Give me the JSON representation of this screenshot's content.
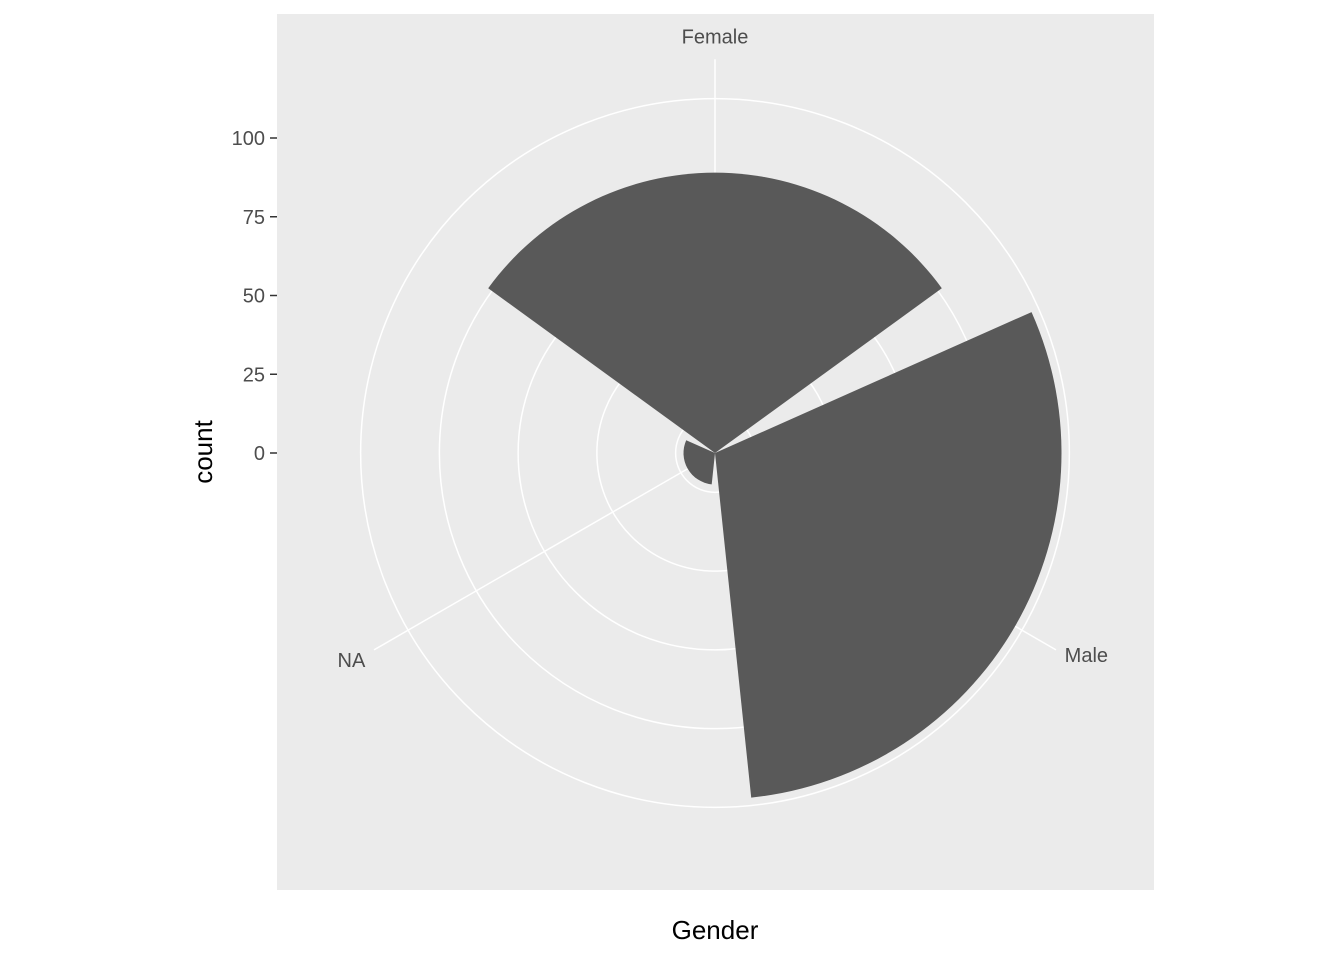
{
  "chart_data": {
    "type": "bar",
    "coord": "polar",
    "categories": [
      "Female",
      "Male",
      "NA"
    ],
    "values": [
      89,
      110,
      10
    ],
    "xlabel": "Gender",
    "ylabel": "count",
    "yticks": [
      0,
      25,
      50,
      75,
      100
    ],
    "ytick_labels": [
      "0",
      "25",
      "50",
      "75",
      "100"
    ],
    "ylim": [
      0,
      125
    ],
    "grid": true,
    "colors": {
      "panel_bg": "#ebebeb",
      "grid": "#ffffff",
      "bar": "#595959",
      "tick_text": "#4d4d4d",
      "tick_mark": "#333333",
      "title_text": "#000000"
    }
  }
}
